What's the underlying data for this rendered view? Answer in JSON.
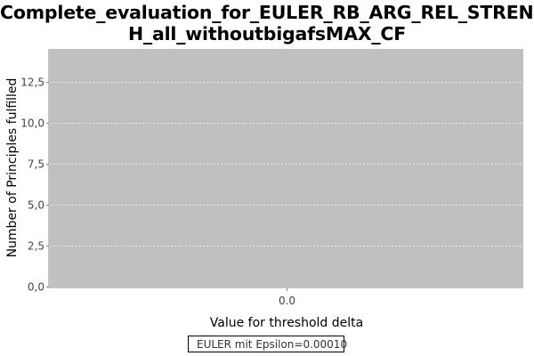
{
  "chart_data": {
    "type": "line",
    "title_lines": [
      "Complete_evaluation_for_EULER_RB_ARG_REL_STRENGT",
      "H_all_withoutbigafsMAX_CF"
    ],
    "xlabel": "Value for threshold delta",
    "ylabel": "Number of Principles fulfilled",
    "x_tick_labels": [
      "0.0"
    ],
    "x_tick_values": [
      0.0
    ],
    "xlim": [
      -0.5,
      0.5
    ],
    "y_tick_labels": [
      "0,0",
      "2,5",
      "5,0",
      "7,5",
      "10,0",
      "12,5"
    ],
    "y_tick_values": [
      0,
      2.5,
      5,
      7.5,
      10,
      12.5
    ],
    "ylim": [
      0,
      14.5
    ],
    "grid": true,
    "legend_position": "bottom-center",
    "series": [
      {
        "name": "EULER mit Epsilon=0.00010",
        "color": "#cc6666",
        "x": [],
        "y": []
      }
    ]
  },
  "colors": {
    "plot_background": "#c0c0c0",
    "grid": "#e8e8e8",
    "axis": "#888888"
  }
}
